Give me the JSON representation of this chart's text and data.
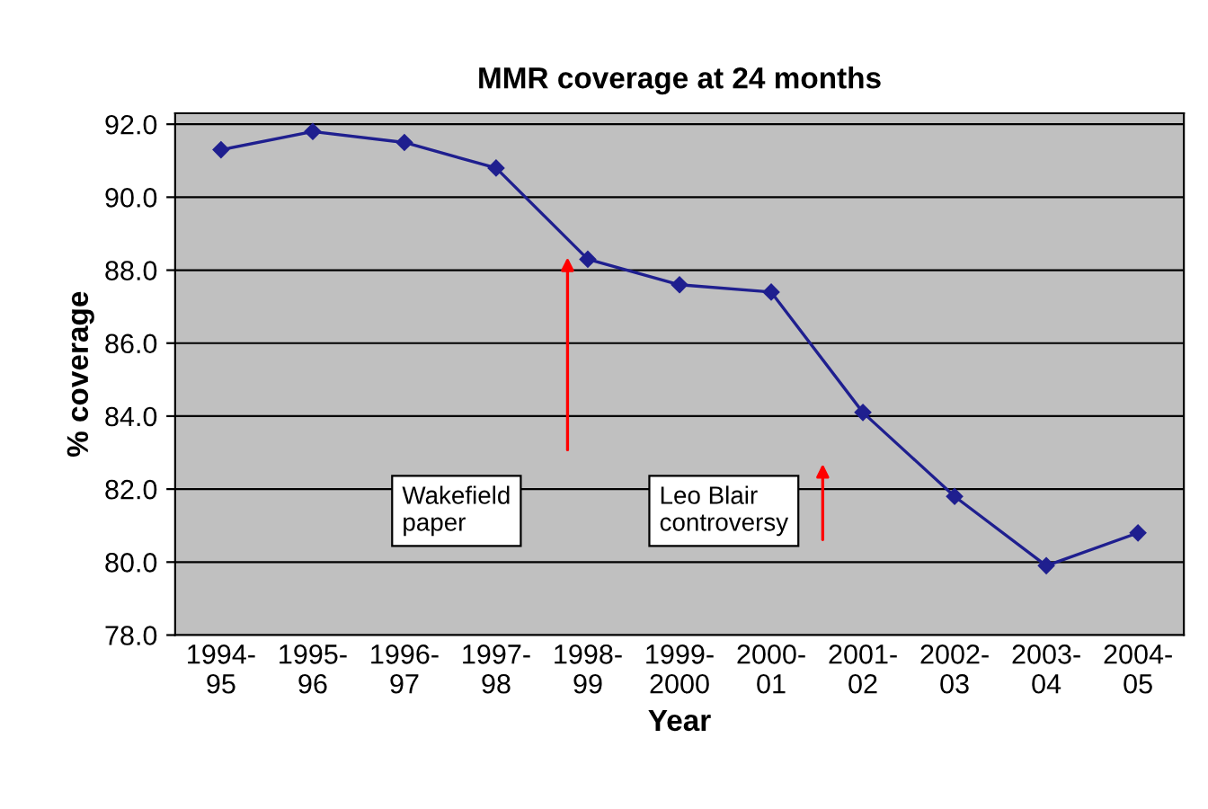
{
  "chart_data": {
    "type": "line",
    "title": "MMR coverage at 24 months",
    "xlabel": "Year",
    "ylabel": "% coverage",
    "categories": [
      "1994-\n95",
      "1995-\n96",
      "1996-\n97",
      "1997-\n98",
      "1998-\n99",
      "1999-\n2000",
      "2000-\n01",
      "2001-\n02",
      "2002-\n03",
      "2003-\n04",
      "2004-\n05"
    ],
    "series": [
      {
        "color": "#1f1f8f",
        "values": [
          91.3,
          91.8,
          91.5,
          90.8,
          88.3,
          87.6,
          87.4,
          84.1,
          81.8,
          79.9,
          80.8
        ]
      }
    ],
    "ylim": [
      78,
      92.3
    ],
    "yticks": [
      {
        "value": 78,
        "label": "78.0"
      },
      {
        "value": 80,
        "label": "80.0"
      },
      {
        "value": 82,
        "label": "82.0"
      },
      {
        "value": 84,
        "label": "84.0"
      },
      {
        "value": 86,
        "label": "86.0"
      },
      {
        "value": 88,
        "label": "88.0"
      },
      {
        "value": 90,
        "label": "90.0"
      },
      {
        "value": 92,
        "label": "92.0"
      }
    ],
    "grid": "y",
    "legend": false,
    "marker": "diamond",
    "line_style": "solid",
    "annotations": [
      "Wakefield\npaper",
      "Leo Blair\ncontroversy"
    ]
  }
}
